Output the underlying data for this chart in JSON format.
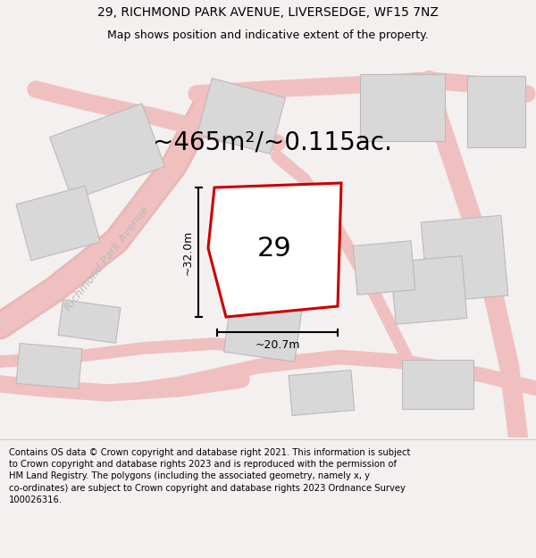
{
  "title_line1": "29, RICHMOND PARK AVENUE, LIVERSEDGE, WF15 7NZ",
  "title_line2": "Map shows position and indicative extent of the property.",
  "area_text": "~465m²/~0.115ac.",
  "label_number": "29",
  "dim_vertical": "~32.0m",
  "dim_horizontal": "~20.7m",
  "street_label": "Richmond Park Avenue",
  "footer_text": "Contains OS data © Crown copyright and database right 2021. This information is subject to Crown copyright and database rights 2023 and is reproduced with the permission of HM Land Registry. The polygons (including the associated geometry, namely x, y co-ordinates) are subject to Crown copyright and database rights 2023 Ordnance Survey 100026316.",
  "bg_color": "#f5f0f0",
  "title_bg": "#ffffff",
  "footer_bg": "#ffffff",
  "property_fill": "#ffffff",
  "property_edge": "#cc0000",
  "road_color": "#f0c0c0",
  "building_fill": "#d8d8d8",
  "building_edge": "#c0b8b8",
  "street_color": "#c0b8b8",
  "title_fontsize": 10,
  "subtitle_fontsize": 9,
  "area_fontsize": 20,
  "label_fontsize": 22,
  "footer_fontsize": 7.2,
  "street_fontsize": 9,
  "dim_fontsize": 9
}
